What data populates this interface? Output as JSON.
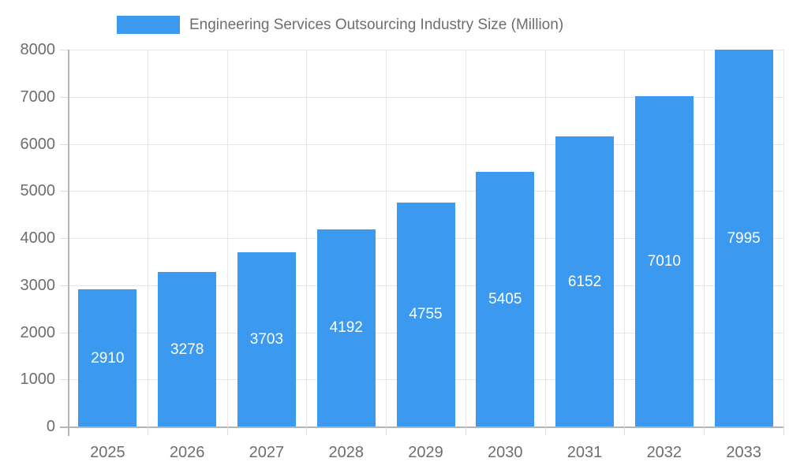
{
  "legend": {
    "label": "Engineering Services Outsourcing Industry Size (Million)"
  },
  "chart_data": {
    "type": "bar",
    "title": "Engineering Services Outsourcing Industry Size (Million)",
    "categories": [
      "2025",
      "2026",
      "2027",
      "2028",
      "2029",
      "2030",
      "2031",
      "2032",
      "2033"
    ],
    "values": [
      2910,
      3278,
      3703,
      4192,
      4755,
      5405,
      6152,
      7010,
      7995
    ],
    "xlabel": "",
    "ylabel": "",
    "ylim": [
      0,
      8000
    ],
    "ytick_interval": 1000,
    "yticks": [
      0,
      1000,
      2000,
      3000,
      4000,
      5000,
      6000,
      7000,
      8000
    ],
    "grid": true,
    "legend_position": "top",
    "value_labels": "inside-center",
    "colors": {
      "bar": "#3b9af0",
      "bar_value_text": "#ffffff",
      "axis_text": "#6e6e6e",
      "gridline": "#e6e6e6",
      "axis_line": "#b5b5b5",
      "tick": "#dcdcdc",
      "background": "#ffffff"
    }
  }
}
